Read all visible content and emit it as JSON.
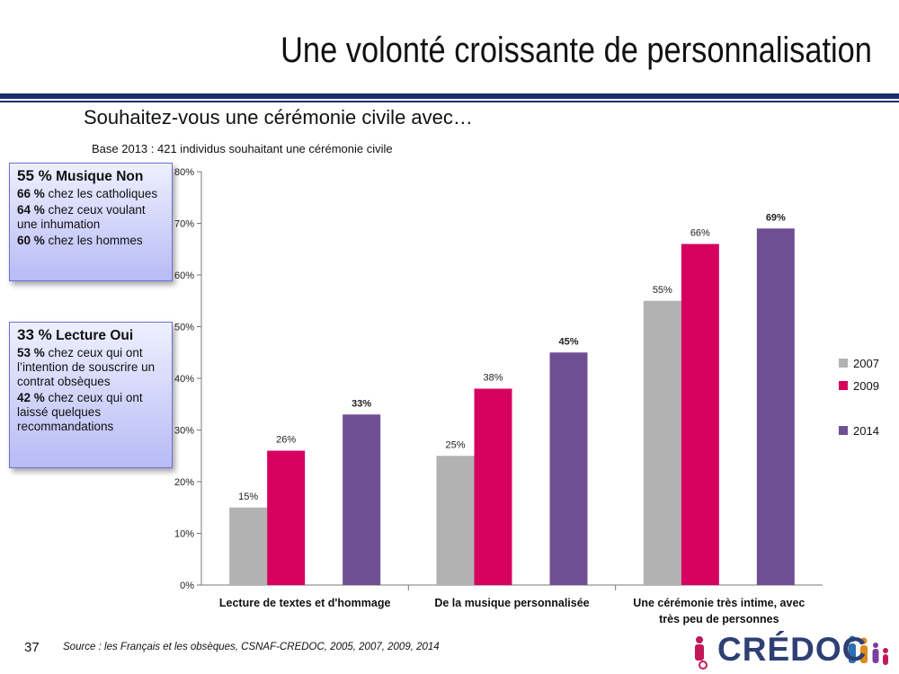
{
  "slide": {
    "title": "Une volonté croissante de personnalisation",
    "question": "Souhaitez-vous une cérémonie civile avec…",
    "base": "Base 2013 : 421 individus souhaitant une cérémonie civile",
    "page_number": "37",
    "source": "Source : les Français et les obsèques, CSNAF-CREDOC, 2005, 2007, 2009, 2014",
    "logo": "CRÉDOC"
  },
  "box1": {
    "head_val": "55 %",
    "head_txt": "Musique Non",
    "l1_val": "66 %",
    "l1_txt": " chez les catholiques",
    "l2_val": "64 %",
    "l2_txt": " chez ceux voulant une inhumation",
    "l3_val": "60 %",
    "l3_txt": " chez les hommes"
  },
  "box2": {
    "head_val": "33 %",
    "head_txt": "Lecture Oui",
    "l1_val": "53 %",
    "l1_txt": " chez ceux qui ont l’intention de souscrire un contrat obsèques",
    "l2_val": "42 %",
    "l2_txt": " chez ceux qui ont laissé quelques recommandations"
  },
  "chart_data": {
    "type": "bar",
    "categories": [
      "Lecture de textes et d'hommage",
      "De la musique personnalisée",
      "Une cérémonie très intime, avec très peu de personnes"
    ],
    "series": [
      {
        "name": "2007",
        "values": [
          15,
          25,
          55
        ],
        "labels": [
          "15%",
          "25%",
          "55%"
        ],
        "color": "#b2b2b2"
      },
      {
        "name": "2009",
        "values": [
          26,
          38,
          66
        ],
        "labels": [
          "26%",
          "38%",
          "66%"
        ],
        "color": "#d6005f"
      },
      {
        "name": "2014",
        "values": [
          33,
          45,
          69
        ],
        "labels": [
          "33%",
          "45%",
          "69%"
        ],
        "color": "#6e4f94"
      }
    ],
    "y_ticks": [
      "0%",
      "10%",
      "20%",
      "30%",
      "40%",
      "50%",
      "60%",
      "70%",
      "80%"
    ],
    "ylim": [
      0,
      80
    ],
    "legend_position": "right",
    "grid": false
  }
}
